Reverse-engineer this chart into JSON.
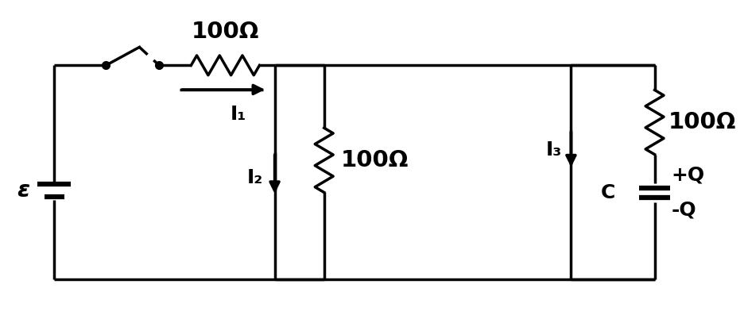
{
  "background_color": "#ffffff",
  "line_color": "#000000",
  "line_width": 2.5,
  "resistor_label": "100Ω",
  "epsilon_label": "ε",
  "i1_label": "I₁",
  "i2_label": "I₂",
  "i3_label": "I₃",
  "c_label": "C",
  "plusq_label": "+Q",
  "minusq_label": "-Q"
}
